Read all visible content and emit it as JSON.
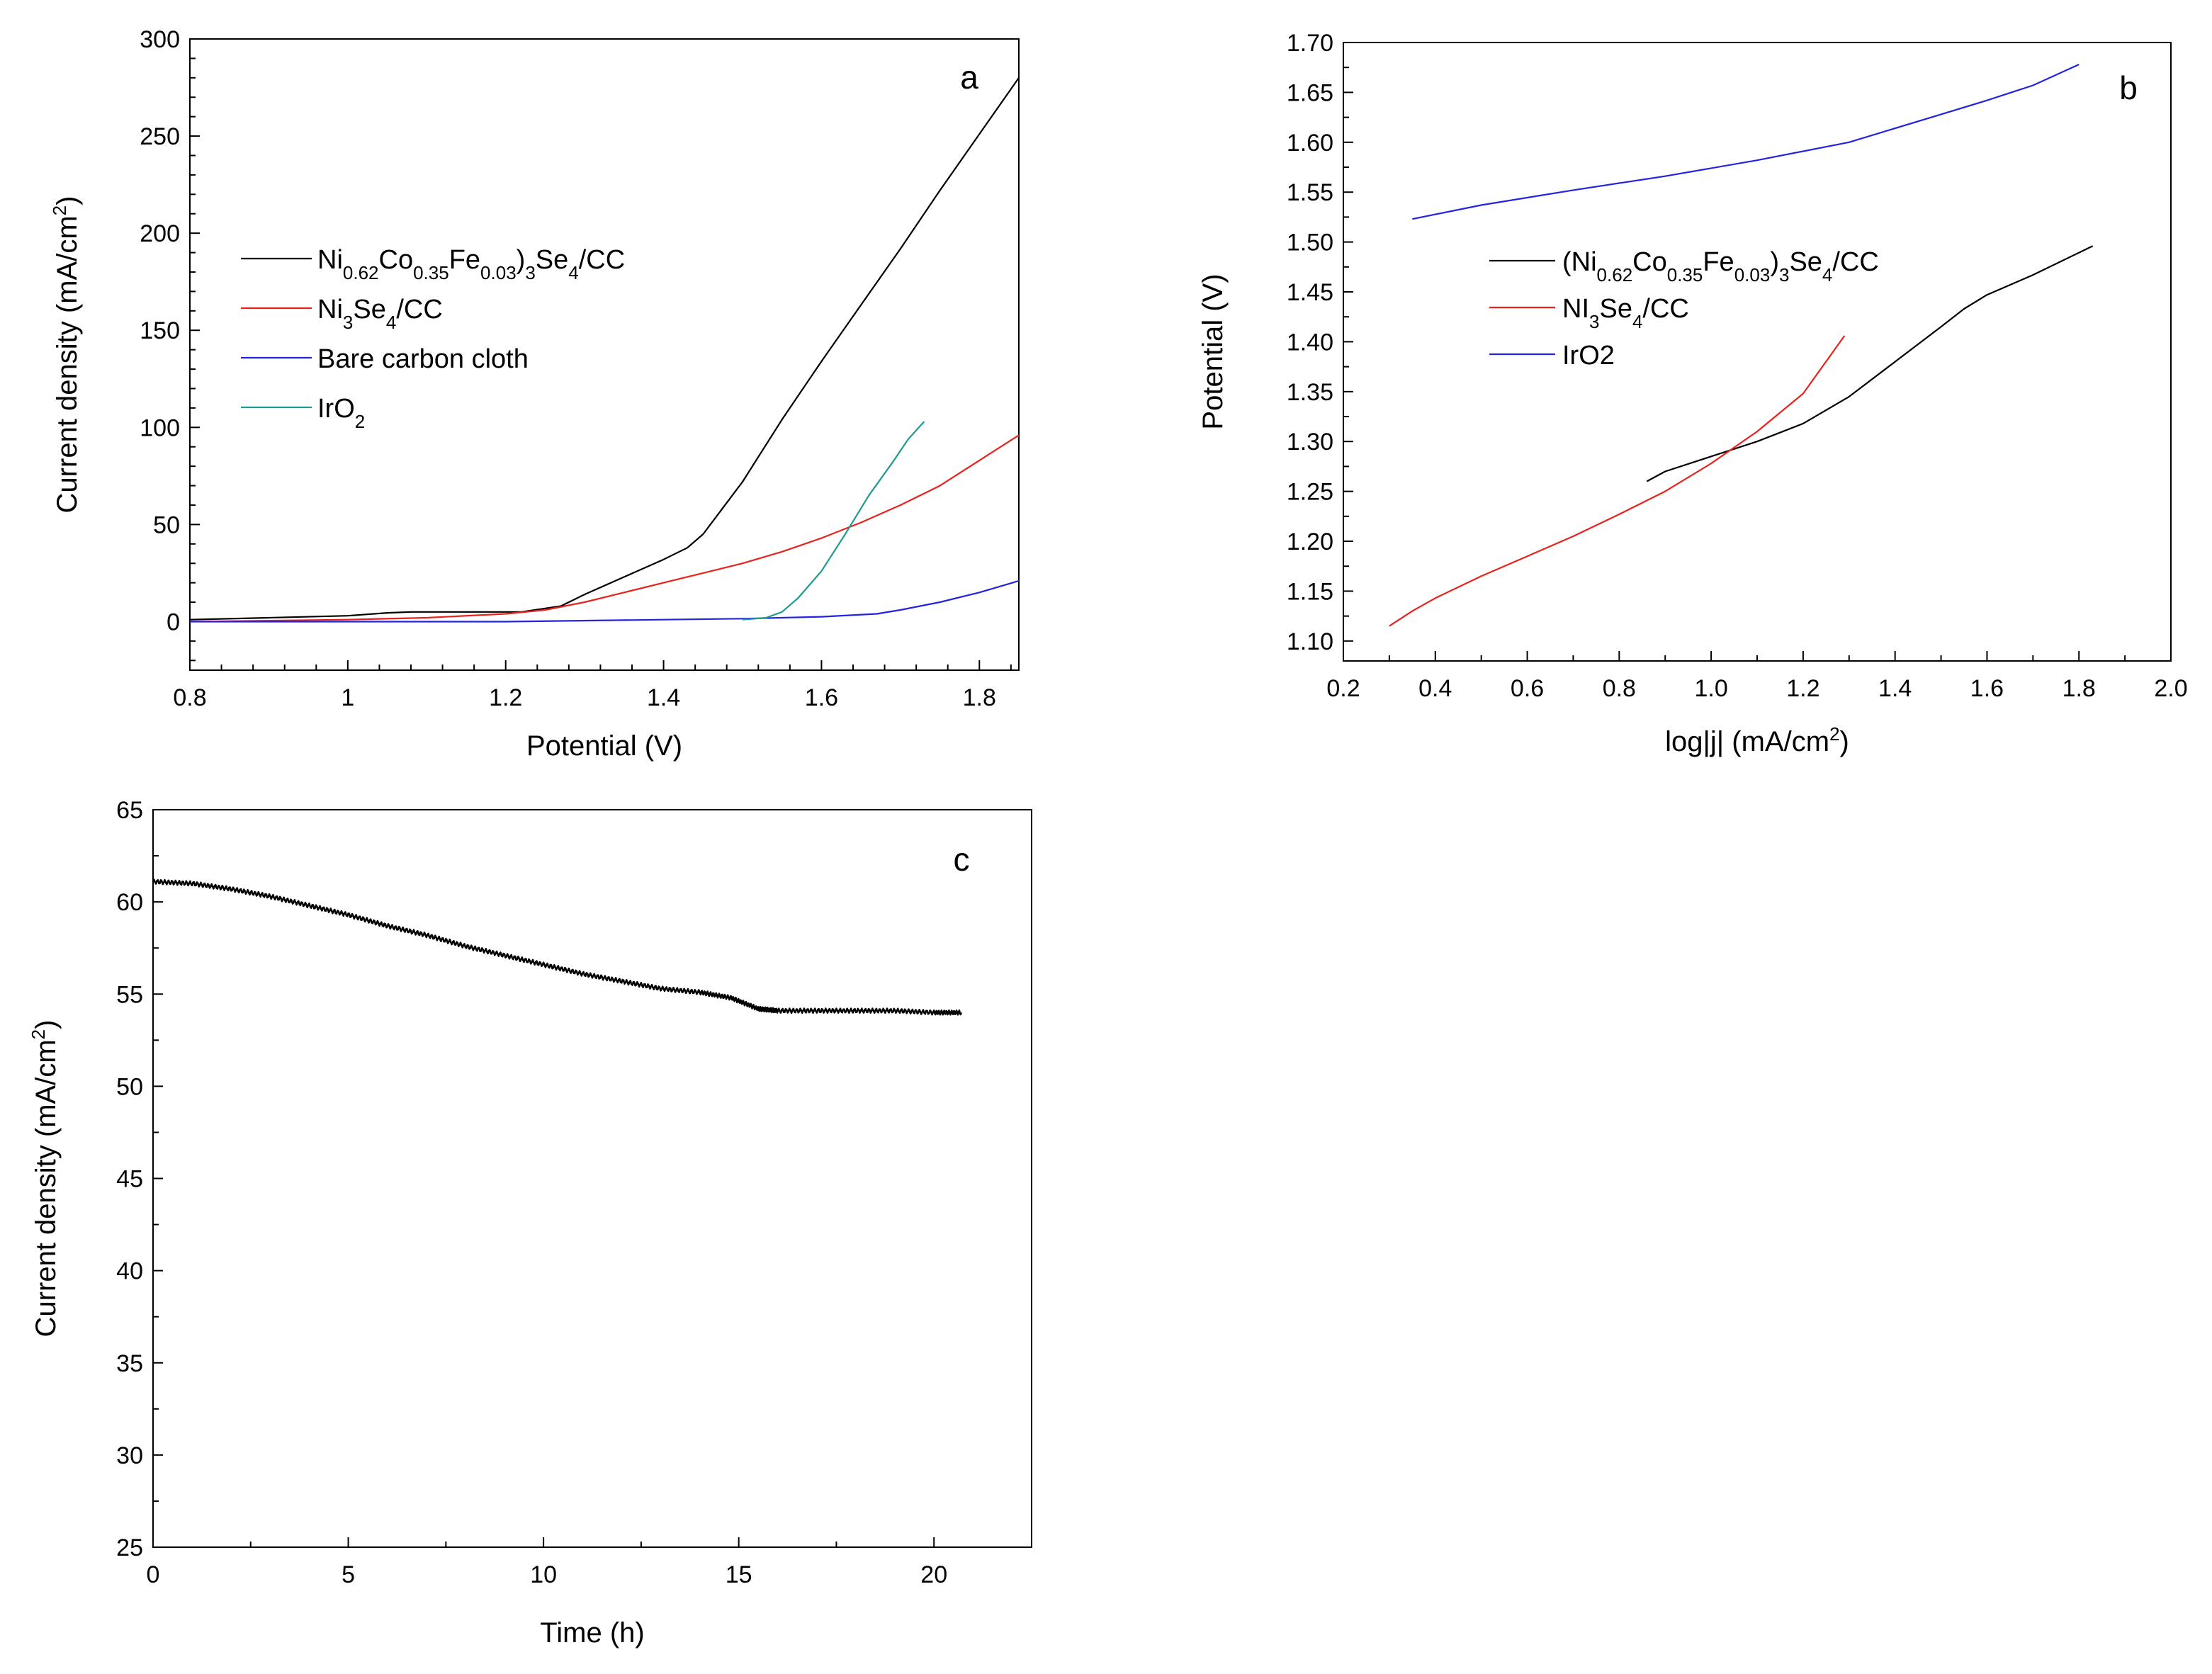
{
  "chart_data": [
    {
      "panel": "a",
      "type": "line",
      "label": "a",
      "xlabel": "Potential (V)",
      "ylabel": "Current density (mA/cm2)",
      "ylabel_parts": {
        "main": "Current density (mA/cm",
        "sup": "2",
        "tail": ")"
      },
      "xlim": [
        0.8,
        1.85
      ],
      "ylim": [
        -25,
        300
      ],
      "xticks": [
        0.8,
        1.0,
        1.2,
        1.4,
        1.6,
        1.8
      ],
      "yticks": [
        0,
        50,
        100,
        150,
        200,
        250,
        300
      ],
      "legend_position": "middle-left",
      "series": [
        {
          "name": "Ni0.62Co0.35Fe0.03)3Se4/CC",
          "legend_parts": [
            [
              "Ni",
              ""
            ],
            [
              "0.62",
              "sub"
            ],
            [
              "Co",
              ""
            ],
            [
              "0.35",
              "sub"
            ],
            [
              "Fe",
              ""
            ],
            [
              "0.03",
              "sub"
            ],
            [
              ")",
              ""
            ],
            [
              "3",
              "sub"
            ],
            [
              "Se",
              ""
            ],
            [
              "4",
              "sub"
            ],
            [
              "/CC",
              ""
            ]
          ],
          "color": "#000000",
          "x": [
            0.8,
            0.9,
            1.0,
            1.05,
            1.08,
            1.15,
            1.22,
            1.27,
            1.3,
            1.35,
            1.4,
            1.43,
            1.45,
            1.5,
            1.55,
            1.6,
            1.65,
            1.7,
            1.75,
            1.8,
            1.85
          ],
          "y": [
            1,
            2,
            3,
            4.5,
            5,
            5,
            5,
            8,
            14,
            23,
            32,
            38,
            45,
            72,
            104,
            134,
            163,
            192,
            222,
            251,
            280
          ]
        },
        {
          "name": "Ni3Se4/CC",
          "legend_parts": [
            [
              "Ni",
              ""
            ],
            [
              "3",
              "sub"
            ],
            [
              "Se",
              ""
            ],
            [
              "4",
              "sub"
            ],
            [
              "/CC",
              ""
            ]
          ],
          "color": "#e8221c",
          "x": [
            0.8,
            1.0,
            1.1,
            1.2,
            1.25,
            1.3,
            1.35,
            1.4,
            1.45,
            1.5,
            1.55,
            1.6,
            1.65,
            1.7,
            1.75,
            1.8,
            1.85
          ],
          "y": [
            0,
            1,
            2,
            4,
            6,
            10,
            15,
            20,
            25,
            30,
            36,
            43,
            51,
            60,
            70,
            83,
            96
          ]
        },
        {
          "name": "Bare carbon cloth",
          "legend_parts": [
            [
              "Bare carbon cloth",
              ""
            ]
          ],
          "color": "#2323e0",
          "x": [
            0.8,
            1.0,
            1.2,
            1.4,
            1.5,
            1.6,
            1.67,
            1.7,
            1.75,
            1.8,
            1.85
          ],
          "y": [
            0,
            0,
            0,
            1,
            1.5,
            2.5,
            4,
            6,
            10,
            15,
            21
          ]
        },
        {
          "name": "IrO2",
          "legend_parts": [
            [
              "IrO",
              ""
            ],
            [
              "2",
              "sub"
            ]
          ],
          "color": "#1f9a8e",
          "x": [
            1.5,
            1.53,
            1.55,
            1.57,
            1.6,
            1.63,
            1.66,
            1.69,
            1.71,
            1.73
          ],
          "y": [
            1,
            2,
            5,
            12,
            26,
            45,
            65,
            82,
            94,
            103
          ]
        }
      ]
    },
    {
      "panel": "b",
      "type": "line",
      "label": "b",
      "xlabel": "log|j| (mA/cm2)",
      "xlabel_parts": {
        "main": "log|j| (mA/cm",
        "sup": "2",
        "tail": ")"
      },
      "ylabel": "Potential (V)",
      "xlim": [
        0.2,
        2.0
      ],
      "ylim": [
        1.08,
        1.7
      ],
      "xticks": [
        0.2,
        0.4,
        0.6,
        0.8,
        1.0,
        1.2,
        1.4,
        1.6,
        1.8,
        2.0
      ],
      "yticks": [
        1.1,
        1.15,
        1.2,
        1.25,
        1.3,
        1.35,
        1.4,
        1.45,
        1.5,
        1.55,
        1.6,
        1.65,
        1.7
      ],
      "xtick_labels": [
        "0.2",
        "0.4",
        "0.6",
        "0.8",
        "1.0",
        "1.2",
        "1.4",
        "1.6",
        "1.8",
        "2.0"
      ],
      "ytick_labels": [
        "1.10",
        "1.15",
        "1.20",
        "1.25",
        "1.30",
        "1.35",
        "1.40",
        "1.45",
        "1.50",
        "1.55",
        "1.60",
        "1.65",
        "1.70"
      ],
      "legend_position": "middle-right",
      "series": [
        {
          "name": "(Ni0.62Co0.35Fe0.03)3Se4/CC",
          "legend_parts": [
            [
              "(Ni",
              ""
            ],
            [
              "0.62",
              "sub"
            ],
            [
              "Co",
              ""
            ],
            [
              "0.35",
              "sub"
            ],
            [
              "Fe",
              ""
            ],
            [
              "0.03",
              "sub"
            ],
            [
              ")",
              ""
            ],
            [
              "3",
              "sub"
            ],
            [
              "Se",
              ""
            ],
            [
              "4",
              "sub"
            ],
            [
              "/CC",
              ""
            ]
          ],
          "color": "#000000",
          "x": [
            0.86,
            0.9,
            1.0,
            1.1,
            1.2,
            1.3,
            1.4,
            1.5,
            1.55,
            1.6,
            1.7,
            1.83
          ],
          "y": [
            1.26,
            1.27,
            1.285,
            1.3,
            1.318,
            1.345,
            1.38,
            1.415,
            1.433,
            1.447,
            1.467,
            1.496
          ]
        },
        {
          "name": "NI3Se4/CC",
          "legend_parts": [
            [
              "NI",
              ""
            ],
            [
              "3",
              "sub"
            ],
            [
              "Se",
              ""
            ],
            [
              "4",
              "sub"
            ],
            [
              "/CC",
              ""
            ]
          ],
          "color": "#e8221c",
          "x": [
            0.3,
            0.35,
            0.4,
            0.5,
            0.6,
            0.7,
            0.8,
            0.9,
            1.0,
            1.1,
            1.2,
            1.29
          ],
          "y": [
            1.115,
            1.13,
            1.143,
            1.165,
            1.185,
            1.205,
            1.227,
            1.25,
            1.278,
            1.31,
            1.348,
            1.406
          ]
        },
        {
          "name": "IrO2",
          "legend_parts": [
            [
              "IrO2",
              ""
            ]
          ],
          "color": "#2323e0",
          "x": [
            0.35,
            0.5,
            0.7,
            0.9,
            1.1,
            1.3,
            1.5,
            1.6,
            1.7,
            1.8
          ],
          "y": [
            1.523,
            1.537,
            1.552,
            1.566,
            1.582,
            1.6,
            1.628,
            1.642,
            1.657,
            1.678
          ]
        }
      ]
    },
    {
      "panel": "c",
      "type": "line",
      "label": "c",
      "xlabel": "Time (h)",
      "ylabel": "Current density (mA/cm2)",
      "ylabel_parts": {
        "main": "Current density (mA/cm",
        "sup": "2",
        "tail": ")"
      },
      "xlim": [
        0,
        22.5
      ],
      "ylim": [
        25,
        65
      ],
      "xticks": [
        0,
        5,
        10,
        15,
        20
      ],
      "yticks": [
        25,
        30,
        35,
        40,
        45,
        50,
        55,
        60,
        65
      ],
      "series": [
        {
          "name": "",
          "color": "#000000",
          "x": [
            0,
            1,
            2,
            3,
            4,
            5,
            6,
            7,
            8,
            9,
            10,
            11,
            12,
            13,
            14,
            14.8,
            15.5,
            16,
            17,
            18,
            19,
            20,
            20.7
          ],
          "y": [
            61.1,
            61.0,
            60.7,
            60.3,
            59.8,
            59.3,
            58.7,
            58.2,
            57.6,
            57.1,
            56.6,
            56.1,
            55.7,
            55.3,
            55.1,
            54.8,
            54.2,
            54.1,
            54.1,
            54.1,
            54.1,
            54.0,
            54.0
          ]
        }
      ]
    }
  ]
}
